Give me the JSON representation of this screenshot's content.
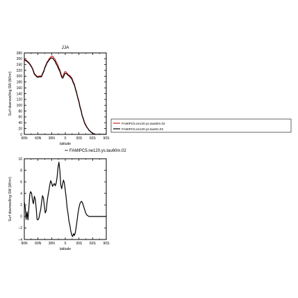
{
  "chart_data": [
    {
      "type": "line",
      "title": "JJA",
      "xlabel": "latitude",
      "ylabel": "Surf downwelling SW (W/m²)",
      "x_ticks": [
        90,
        60,
        30,
        0,
        -30,
        -60,
        -90
      ],
      "x_tick_labels": [
        "90N",
        "60N",
        "30N",
        "0",
        "30S",
        "60S",
        "90S"
      ],
      "y_ticks": [
        0,
        20,
        40,
        60,
        80,
        100,
        120,
        140,
        160,
        180,
        200,
        220,
        240,
        260,
        280
      ],
      "y_tick_labels": [
        "0",
        "20",
        "40",
        "60",
        "80",
        "100",
        "120",
        "140",
        "160",
        "180",
        "200",
        "220",
        "240",
        "260",
        "280"
      ],
      "xlim": [
        90,
        -90
      ],
      "ylim": [
        0,
        280
      ],
      "legend_position": "right",
      "series": [
        {
          "name": "FAMIPC5.ne120.ys.tau60m.02",
          "color": "#cc2222",
          "x": [
            90,
            85,
            80,
            75,
            72,
            70,
            68,
            65,
            62,
            60,
            57,
            55,
            52,
            50,
            47,
            45,
            42,
            40,
            37,
            35,
            32,
            30,
            27,
            25,
            22,
            20,
            17,
            15,
            12,
            10,
            8,
            6,
            4,
            2,
            0,
            -2,
            -4,
            -6,
            -8,
            -10,
            -12,
            -15,
            -17,
            -20,
            -22,
            -25,
            -27,
            -30,
            -32,
            -35,
            -37,
            -40,
            -42,
            -45,
            -47,
            -50,
            -52,
            -55,
            -57,
            -60,
            -62,
            -65,
            -67,
            -70,
            -72,
            -75,
            -77,
            -80,
            -82,
            -85,
            -87,
            -90
          ],
          "values": [
            258,
            254,
            247,
            236,
            227,
            219,
            210,
            204,
            200,
            199,
            201,
            200,
            202,
            210,
            220,
            231,
            241,
            249,
            255,
            261,
            266,
            269,
            268,
            263,
            257,
            249,
            241,
            232,
            222,
            211,
            201,
            199,
            204,
            213,
            216,
            214,
            210,
            206,
            204,
            202,
            199,
            192,
            183,
            173,
            160,
            144,
            130,
            114,
            98,
            82,
            66,
            53,
            42,
            33,
            26,
            20,
            15,
            11,
            7,
            4,
            2,
            1,
            0,
            0,
            0,
            0,
            0,
            0,
            0,
            0,
            0,
            0
          ]
        },
        {
          "name": "FAMIPC5.ne120.ys.tau5m.02",
          "color": "#000000",
          "x": [
            90,
            85,
            80,
            75,
            72,
            70,
            68,
            65,
            62,
            60,
            57,
            55,
            52,
            50,
            47,
            45,
            42,
            40,
            37,
            35,
            32,
            30,
            27,
            25,
            22,
            20,
            17,
            15,
            12,
            10,
            8,
            6,
            4,
            2,
            0,
            -2,
            -4,
            -6,
            -8,
            -10,
            -12,
            -15,
            -17,
            -20,
            -22,
            -25,
            -27,
            -30,
            -32,
            -35,
            -37,
            -40,
            -42,
            -45,
            -47,
            -50,
            -52,
            -55,
            -57,
            -60,
            -62,
            -65,
            -67,
            -70,
            -72,
            -75,
            -77,
            -80,
            -82,
            -85,
            -87,
            -90
          ],
          "values": [
            256,
            252,
            245,
            234,
            225,
            216,
            207,
            202,
            197,
            196,
            198,
            197,
            199,
            207,
            217,
            228,
            238,
            246,
            252,
            257,
            261,
            263,
            261,
            256,
            250,
            242,
            234,
            226,
            217,
            207,
            197,
            193,
            197,
            206,
            210,
            209,
            207,
            203,
            201,
            198,
            195,
            188,
            179,
            169,
            157,
            141,
            127,
            111,
            95,
            79,
            64,
            51,
            40,
            31,
            25,
            19,
            14,
            10,
            7,
            4,
            2,
            1,
            0,
            0,
            0,
            0,
            0,
            0,
            0,
            0,
            0,
            0
          ]
        }
      ]
    },
    {
      "type": "line",
      "title": "",
      "xlabel": "latitude",
      "ylabel": "Surf downwelling SW (W/m²)",
      "x_ticks": [
        90,
        60,
        30,
        0,
        -30,
        -60,
        -90
      ],
      "x_tick_labels": [
        "90N",
        "60N",
        "30N",
        "0",
        "30S",
        "60S",
        "90S"
      ],
      "y_ticks": [
        -4,
        -2,
        0,
        2,
        4,
        6,
        8,
        10
      ],
      "y_tick_labels": [
        "−4",
        "−2",
        "0",
        "2",
        "4",
        "6",
        "8",
        "10"
      ],
      "xlim": [
        90,
        -90
      ],
      "ylim": [
        -4,
        10
      ],
      "legend_position": "top",
      "series": [
        {
          "name": "FAMIPC5.ne120.ys.tau60m.02",
          "color": "#000000",
          "x": [
            90,
            88,
            86,
            84,
            82,
            80,
            78,
            76,
            74,
            72,
            70,
            68,
            66,
            64,
            62,
            60,
            58,
            56,
            54,
            52,
            50,
            48,
            46,
            44,
            42,
            40,
            38,
            36,
            34,
            32,
            30,
            28,
            26,
            24,
            22,
            20,
            18,
            16,
            14,
            12,
            10,
            8,
            6,
            4,
            2,
            0,
            -2,
            -4,
            -6,
            -8,
            -10,
            -12,
            -14,
            -16,
            -18,
            -20,
            -22,
            -24,
            -26,
            -28,
            -30,
            -32,
            -34,
            -36,
            -38,
            -40,
            -42,
            -44,
            -46,
            -48,
            -50,
            -52,
            -54,
            -56,
            -58,
            -60,
            -62,
            -64,
            -66,
            -68,
            -70,
            -72,
            -74,
            -76,
            -78,
            -80,
            -82,
            -84,
            -86,
            -88,
            -90
          ],
          "values": [
            2.5,
            1.5,
            -0.5,
            0.8,
            -0.6,
            1.5,
            3.8,
            4.3,
            4.0,
            2.8,
            2.2,
            3.5,
            3.0,
            1.5,
            -0.5,
            -0.6,
            -0.3,
            0.5,
            1.2,
            2.5,
            3.6,
            3.2,
            1.8,
            0.6,
            1.0,
            2.5,
            3.6,
            4.5,
            5.5,
            6.2,
            5.8,
            5.2,
            5.5,
            5.7,
            5.3,
            5.8,
            6.8,
            8.5,
            9.4,
            8.0,
            5.5,
            4.8,
            5.6,
            6.3,
            5.8,
            4.5,
            3.2,
            1.5,
            0.5,
            -0.8,
            -1.5,
            -2.5,
            -3.2,
            -3.5,
            -3.0,
            -3.3,
            -2.8,
            -1.8,
            -0.6,
            0.6,
            1.5,
            2.2,
            2.5,
            2.6,
            2.3,
            1.8,
            1.3,
            0.8,
            0.4,
            0.2,
            0.1,
            0.0,
            0.0,
            0.0,
            0.0,
            0.0,
            0.0,
            0.0,
            0.0,
            0.0,
            0.0,
            0.0,
            0.0,
            0.0,
            0.0,
            0.0,
            0.0,
            0.0,
            0.0,
            0.0,
            0.0
          ]
        }
      ]
    }
  ]
}
